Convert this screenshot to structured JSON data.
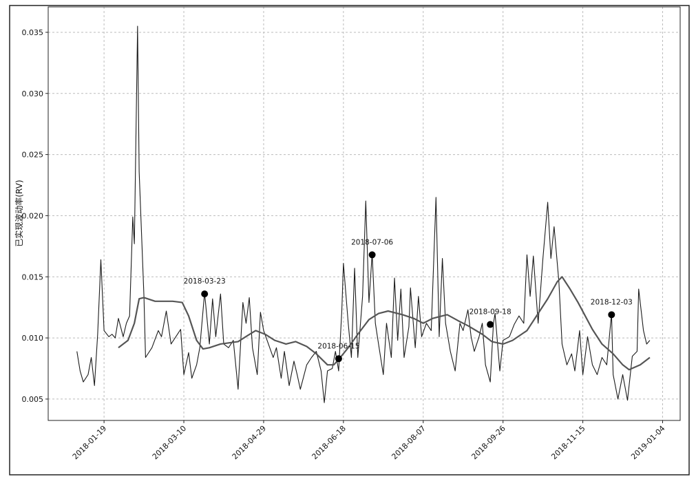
{
  "chart_data": {
    "type": "line",
    "ylabel": "已实现波动率(RV)",
    "xlim": [
      "2017-12-15",
      "2019-01-15"
    ],
    "xticks": [
      "2018-01-19",
      "2018-03-10",
      "2018-04-29",
      "2018-06-18",
      "2018-08-07",
      "2018-09-26",
      "2018-11-15",
      "2019-01-04"
    ],
    "ylim": [
      0.00325,
      0.03708
    ],
    "yticks": [
      0.005,
      {
        "value": 0.01,
        "label": "0.010"
      },
      0.015,
      {
        "value": 0.02,
        "label": "0.020"
      },
      0.025,
      {
        "value": 0.03,
        "label": "0.030"
      },
      0.035
    ],
    "grid": true,
    "series": [
      {
        "color": "#1a1a1a",
        "x": [
          "2018-01-02",
          "2018-01-04",
          "2018-01-06",
          "2018-01-09",
          "2018-01-11",
          "2018-01-13",
          "2018-01-15",
          "2018-01-17",
          "2018-01-19",
          "2018-01-22",
          "2018-01-24",
          "2018-01-26",
          "2018-01-28",
          "2018-01-31",
          "2018-02-02",
          "2018-02-04",
          "2018-02-06",
          "2018-02-07",
          "2018-02-09",
          "2018-02-10",
          "2018-02-13",
          "2018-02-14",
          "2018-02-18",
          "2018-02-22",
          "2018-02-24",
          "2018-02-27",
          "2018-03-02",
          "2018-03-05",
          "2018-03-08",
          "2018-03-10",
          "2018-03-13",
          "2018-03-15",
          "2018-03-18",
          "2018-03-20",
          "2018-03-23",
          "2018-03-26",
          "2018-03-28",
          "2018-03-30",
          "2018-04-02",
          "2018-04-04",
          "2018-04-07",
          "2018-04-10",
          "2018-04-13",
          "2018-04-16",
          "2018-04-18",
          "2018-04-20",
          "2018-04-22",
          "2018-04-25",
          "2018-04-27",
          "2018-04-29",
          "2018-05-02",
          "2018-05-05",
          "2018-05-07",
          "2018-05-10",
          "2018-05-12",
          "2018-05-15",
          "2018-05-18",
          "2018-05-20",
          "2018-05-22",
          "2018-05-26",
          "2018-05-29",
          "2018-06-01",
          "2018-06-04",
          "2018-06-06",
          "2018-06-08",
          "2018-06-11",
          "2018-06-13",
          "2018-06-15",
          "2018-06-17",
          "2018-06-18",
          "2018-06-21",
          "2018-06-23",
          "2018-06-25",
          "2018-06-27",
          "2018-06-30",
          "2018-07-02",
          "2018-07-04",
          "2018-07-06",
          "2018-07-08",
          "2018-07-10",
          "2018-07-13",
          "2018-07-15",
          "2018-07-18",
          "2018-07-20",
          "2018-07-22",
          "2018-07-24",
          "2018-07-26",
          "2018-07-29",
          "2018-07-30",
          "2018-08-02",
          "2018-08-04",
          "2018-08-06",
          "2018-08-09",
          "2018-08-12",
          "2018-08-15",
          "2018-08-17",
          "2018-08-19",
          "2018-08-21",
          "2018-08-24",
          "2018-08-27",
          "2018-08-30",
          "2018-09-01",
          "2018-09-04",
          "2018-09-06",
          "2018-09-08",
          "2018-09-11",
          "2018-09-13",
          "2018-09-15",
          "2018-09-18",
          "2018-09-20",
          "2018-09-21",
          "2018-09-24",
          "2018-09-26",
          "2018-09-30",
          "2018-10-03",
          "2018-10-06",
          "2018-10-09",
          "2018-10-11",
          "2018-10-13",
          "2018-10-15",
          "2018-10-18",
          "2018-10-21",
          "2018-10-24",
          "2018-10-26",
          "2018-10-28",
          "2018-10-31",
          "2018-11-02",
          "2018-11-05",
          "2018-11-08",
          "2018-11-10",
          "2018-11-13",
          "2018-11-15",
          "2018-11-18",
          "2018-11-21",
          "2018-11-24",
          "2018-11-27",
          "2018-11-30",
          "2018-12-03",
          "2018-12-04",
          "2018-12-07",
          "2018-12-10",
          "2018-12-13",
          "2018-12-16",
          "2018-12-19",
          "2018-12-20",
          "2018-12-23",
          "2018-12-25",
          "2018-12-27"
        ],
        "values": [
          0.0089,
          0.0073,
          0.0064,
          0.007,
          0.0084,
          0.0061,
          0.0103,
          0.0164,
          0.0106,
          0.0101,
          0.0103,
          0.01,
          0.0116,
          0.0101,
          0.0112,
          0.0118,
          0.0199,
          0.0177,
          0.0355,
          0.0236,
          0.0134,
          0.0084,
          0.0092,
          0.0106,
          0.0101,
          0.0122,
          0.0095,
          0.0101,
          0.0107,
          0.007,
          0.0088,
          0.0067,
          0.0078,
          0.0092,
          0.0137,
          0.0095,
          0.0132,
          0.0101,
          0.0136,
          0.0095,
          0.0092,
          0.0098,
          0.0058,
          0.0129,
          0.0112,
          0.0133,
          0.0092,
          0.007,
          0.0121,
          0.0106,
          0.0095,
          0.0084,
          0.0092,
          0.0067,
          0.0089,
          0.0061,
          0.0081,
          0.007,
          0.0058,
          0.0078,
          0.0084,
          0.0089,
          0.0073,
          0.0047,
          0.0073,
          0.0075,
          0.0089,
          0.0073,
          0.0123,
          0.0161,
          0.0112,
          0.0084,
          0.0157,
          0.0084,
          0.0134,
          0.0212,
          0.0129,
          0.0169,
          0.0112,
          0.0095,
          0.007,
          0.0112,
          0.0084,
          0.0149,
          0.0098,
          0.014,
          0.0084,
          0.0109,
          0.0141,
          0.0092,
          0.0134,
          0.0101,
          0.0112,
          0.0106,
          0.0215,
          0.0101,
          0.0165,
          0.0112,
          0.0089,
          0.0073,
          0.0112,
          0.0106,
          0.0123,
          0.0101,
          0.0089,
          0.0101,
          0.0112,
          0.0078,
          0.0064,
          0.0112,
          0.012,
          0.0073,
          0.0098,
          0.0101,
          0.0111,
          0.0118,
          0.0112,
          0.0168,
          0.0134,
          0.0167,
          0.0112,
          0.0165,
          0.0211,
          0.0165,
          0.0191,
          0.0146,
          0.0095,
          0.0078,
          0.0087,
          0.0073,
          0.0106,
          0.007,
          0.0101,
          0.0078,
          0.007,
          0.0084,
          0.0078,
          0.012,
          0.007,
          0.005,
          0.007,
          0.0049,
          0.0085,
          0.0089,
          0.014,
          0.0106,
          0.0095,
          0.0098
        ]
      },
      {
        "color": "#555555",
        "x": [
          "2018-01-28",
          "2018-02-03",
          "2018-02-07",
          "2018-02-10",
          "2018-02-13",
          "2018-02-20",
          "2018-03-03",
          "2018-03-09",
          "2018-03-13",
          "2018-03-18",
          "2018-03-22",
          "2018-03-26",
          "2018-04-02",
          "2018-04-13",
          "2018-04-19",
          "2018-04-24",
          "2018-04-30",
          "2018-05-06",
          "2018-05-13",
          "2018-05-19",
          "2018-05-26",
          "2018-06-01",
          "2018-06-08",
          "2018-06-12",
          "2018-06-16",
          "2018-06-21",
          "2018-06-27",
          "2018-07-04",
          "2018-07-10",
          "2018-07-16",
          "2018-07-25",
          "2018-08-01",
          "2018-08-07",
          "2018-08-13",
          "2018-08-22",
          "2018-08-29",
          "2018-09-04",
          "2018-09-13",
          "2018-09-19",
          "2018-09-26",
          "2018-10-02",
          "2018-10-11",
          "2018-10-17",
          "2018-10-24",
          "2018-10-30",
          "2018-11-02",
          "2018-11-07",
          "2018-11-12",
          "2018-11-21",
          "2018-11-27",
          "2018-12-04",
          "2018-12-10",
          "2018-12-14",
          "2018-12-21",
          "2018-12-27"
        ],
        "values": [
          0.0092,
          0.0098,
          0.0112,
          0.0132,
          0.0133,
          0.013,
          0.013,
          0.0129,
          0.0118,
          0.0098,
          0.0091,
          0.0092,
          0.0095,
          0.0097,
          0.0102,
          0.0106,
          0.0103,
          0.0098,
          0.0095,
          0.0097,
          0.0093,
          0.0087,
          0.0078,
          0.0078,
          0.0084,
          0.0092,
          0.0103,
          0.0115,
          0.012,
          0.0122,
          0.0119,
          0.0116,
          0.0112,
          0.0116,
          0.0119,
          0.0114,
          0.011,
          0.0103,
          0.0097,
          0.0095,
          0.0098,
          0.0106,
          0.0118,
          0.0132,
          0.0146,
          0.015,
          0.014,
          0.0129,
          0.0107,
          0.0095,
          0.0087,
          0.0078,
          0.0074,
          0.0078,
          0.0084
        ]
      }
    ],
    "annotations": [
      {
        "x": "2018-03-23",
        "y": 0.0136
      },
      {
        "x": "2018-06-15",
        "y": 0.0083
      },
      {
        "x": "2018-07-06",
        "y": 0.0168
      },
      {
        "x": "2018-09-18",
        "y": 0.0111
      },
      {
        "x": "2018-12-03",
        "y": 0.0119
      }
    ]
  }
}
